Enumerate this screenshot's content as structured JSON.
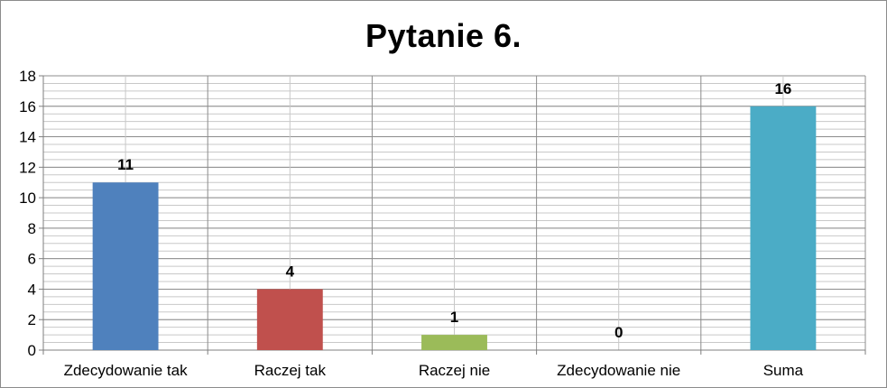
{
  "chart_data": {
    "type": "bar",
    "title": "Pytanie 6.",
    "categories": [
      "Zdecydowanie tak",
      "Raczej tak",
      "Raczej nie",
      "Zdecydowanie nie",
      "Suma"
    ],
    "values": [
      11,
      4,
      1,
      0,
      16
    ],
    "data_labels": [
      "11",
      "4",
      "1",
      "0",
      "16"
    ],
    "colors": [
      "#4f81bd",
      "#c0504d",
      "#9bbb59",
      "#8064a2",
      "#4bacc6"
    ],
    "ylim": [
      0,
      18
    ],
    "yticks": [
      0,
      2,
      4,
      6,
      8,
      10,
      12,
      14,
      16,
      18
    ],
    "ytick_labels": [
      "0",
      "2",
      "4",
      "6",
      "8",
      "10",
      "12",
      "14",
      "16",
      "18"
    ],
    "minor_step": 0.5,
    "grid": true,
    "legend": "none"
  }
}
